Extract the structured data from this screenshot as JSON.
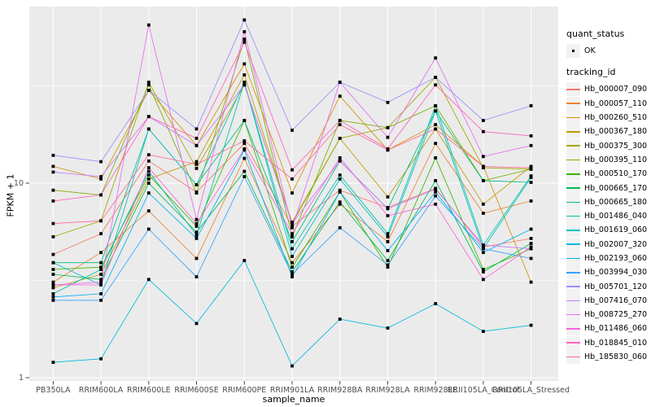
{
  "legend": {
    "quant_status_title": "quant_status",
    "ok_label": "OK",
    "tracking_id_title": "tracking_id"
  },
  "style_colors": {
    "panel_background": "#EBEBEB",
    "gridline": "#FFFFFF",
    "axis_tick_label": "#4D4D4D",
    "axis_tick_mark": "#333333",
    "point": "#000000",
    "legend_key_background": "#F2F2F2"
  },
  "chart_data": {
    "type": "line",
    "title": "",
    "xlabel": "sample_name",
    "ylabel": "FPKM + 1",
    "y_scale": "log10",
    "ylim": [
      1,
      82
    ],
    "y_major_ticks": [
      1,
      10
    ],
    "y_minor_gridlines": [
      3.1623,
      31.6228
    ],
    "grid": "major white on gray panel, vertical line per category",
    "legend_position": "right",
    "point_marker": "small black square (quant_status = OK)",
    "categories": [
      "PB350LA",
      "RRIM600LA",
      "RRIM600LE",
      "RRIM600SE",
      "RRIM600PE",
      "RRIM901LA",
      "RRIM928BA",
      "RRIM928LA",
      "RRIM928LE",
      "RRII105LA_Control",
      "RRII105LA_Stressed"
    ],
    "series": [
      {
        "name": "Hb_000007_090",
        "color": "#F8766D",
        "values": [
          4.3,
          5.5,
          13,
          9.0,
          16,
          6.0,
          9.2,
          7.5,
          9.4,
          4.7,
          5.2
        ]
      },
      {
        "name": "Hb_000057_110",
        "color": "#EA8331",
        "values": [
          3.1,
          4.4,
          7.2,
          4.1,
          13.4,
          3.9,
          7.8,
          5.0,
          16,
          7.0,
          8.1
        ]
      },
      {
        "name": "Hb_000260_510",
        "color": "#D89000",
        "values": [
          12.2,
          10.5,
          30,
          15.6,
          41,
          8.9,
          28,
          14.8,
          20,
          12.2,
          3.1
        ]
      },
      {
        "name": "Hb_000367_180",
        "color": "#C09B00",
        "values": [
          2.9,
          3.4,
          10.5,
          12.9,
          36,
          6.2,
          17,
          8.5,
          19,
          7.8,
          12.2
        ]
      },
      {
        "name": "Hb_000375_300",
        "color": "#A3A500",
        "values": [
          5.3,
          6.4,
          33,
          11.9,
          32,
          6.3,
          17,
          19.3,
          35,
          12.0,
          11.8
        ]
      },
      {
        "name": "Hb_000395_110",
        "color": "#7CAE00",
        "values": [
          9.2,
          8.7,
          32,
          8.9,
          55,
          5.3,
          21,
          19.3,
          25,
          10.3,
          11.8
        ]
      },
      {
        "name": "Hb_000510_170",
        "color": "#39B600",
        "values": [
          3.6,
          3.7,
          11,
          6.0,
          21,
          3.7,
          9.0,
          3.7,
          13.5,
          3.6,
          4.6
        ]
      },
      {
        "name": "Hb_000665_170",
        "color": "#00BB4E",
        "values": [
          3.4,
          3.2,
          10,
          5.6,
          11.5,
          3.5,
          8.0,
          4.0,
          10.3,
          3.5,
          4.9
        ]
      },
      {
        "name": "Hb_000665_180",
        "color": "#00BF7D",
        "values": [
          3.9,
          3.9,
          19,
          9.8,
          21,
          5.0,
          13,
          7.4,
          23.5,
          10.3,
          10.1
        ]
      },
      {
        "name": "Hb_001486_040",
        "color": "#00C1A3",
        "values": [
          2.7,
          3.6,
          11.5,
          5.4,
          33,
          4.6,
          11,
          5.5,
          25,
          4.8,
          10.9
        ]
      },
      {
        "name": "Hb_001619_060",
        "color": "#00BFC4",
        "values": [
          3.9,
          3.0,
          19,
          9.8,
          33,
          4.2,
          10.5,
          5.3,
          23.5,
          4.6,
          10.7
        ]
      },
      {
        "name": "Hb_002007_320",
        "color": "#00BAE0",
        "values": [
          1.2,
          1.25,
          3.2,
          1.9,
          4.0,
          1.15,
          2.0,
          1.8,
          2.4,
          1.73,
          1.86
        ]
      },
      {
        "name": "Hb_002193_060",
        "color": "#00B0F6",
        "values": [
          2.6,
          2.7,
          8.9,
          5.2,
          14.8,
          3.3,
          9.0,
          4.5,
          9.0,
          4.4,
          5.8
        ]
      },
      {
        "name": "Hb_003994_030",
        "color": "#35A2FF",
        "values": [
          2.5,
          2.5,
          5.8,
          3.3,
          10.8,
          3.4,
          5.9,
          3.8,
          8.6,
          4.6,
          4.1
        ]
      },
      {
        "name": "Hb_005701_120",
        "color": "#9590FF",
        "values": [
          13.9,
          12.9,
          30,
          19,
          69,
          18.7,
          33,
          26,
          35,
          21,
          25
        ]
      },
      {
        "name": "Hb_007416_070",
        "color": "#C77CFF",
        "values": [
          11.4,
          10.8,
          22,
          15.6,
          32,
          6.2,
          13,
          7.4,
          9.3,
          4.8,
          4.6
        ]
      },
      {
        "name": "Hb_008725_270",
        "color": "#E76BF3",
        "values": [
          3.0,
          3.1,
          65,
          6.5,
          60,
          5.9,
          33,
          17.2,
          44,
          13.7,
          15.6
        ]
      },
      {
        "name": "Hb_011486_060",
        "color": "#FA62DB",
        "values": [
          3.0,
          3.0,
          12,
          6.2,
          15,
          5.5,
          13.5,
          6.8,
          7.8,
          3.2,
          4.7
        ]
      },
      {
        "name": "Hb_018845_010",
        "color": "#FF62BC",
        "values": [
          8.1,
          8.7,
          22,
          17,
          53,
          11.7,
          21,
          15,
          32,
          18.4,
          17.5
        ]
      },
      {
        "name": "Hb_185830_060",
        "color": "#FF6A98",
        "values": [
          6.2,
          6.4,
          14,
          12.5,
          16.5,
          10.5,
          20,
          14.8,
          19,
          12.2,
          12.0
        ]
      }
    ]
  }
}
